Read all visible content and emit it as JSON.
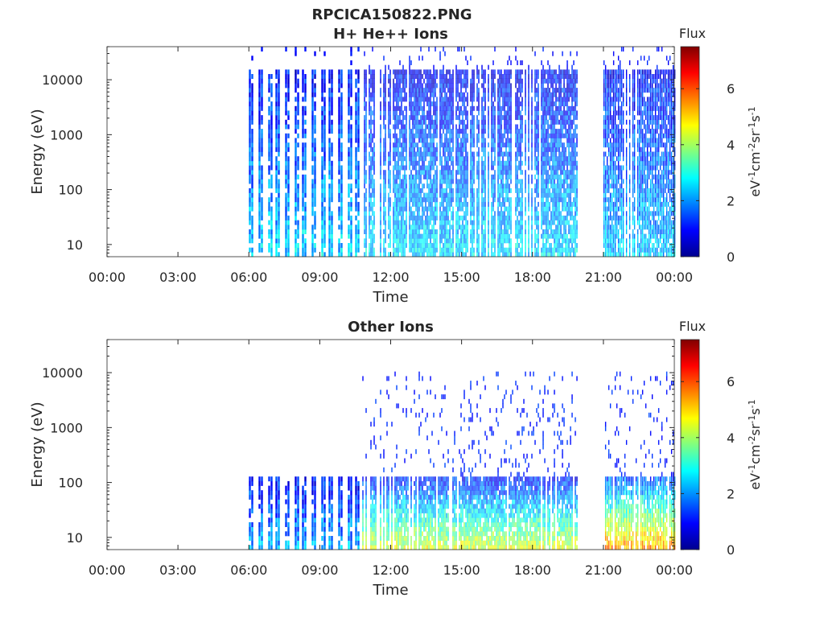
{
  "figure_title": "RPCICA150822.PNG",
  "colors": {
    "axis": "#262626",
    "colormap": [
      "#00008f",
      "#0000ff",
      "#0080ff",
      "#00ffff",
      "#80ff80",
      "#ffff00",
      "#ff8000",
      "#ff0000",
      "#800000"
    ]
  },
  "chart_data": [
    {
      "type": "heatmap",
      "title": "H+ He++ Ions",
      "xlabel": "Time",
      "ylabel": "Energy (eV)",
      "x_ticks": [
        "00:00",
        "03:00",
        "06:00",
        "09:00",
        "12:00",
        "15:00",
        "18:00",
        "21:00",
        "00:00"
      ],
      "x_range_hours": [
        0,
        24
      ],
      "y_scale": "log",
      "y_ticks": [
        "10",
        "100",
        "1000",
        "10000"
      ],
      "y_range_eV": [
        6,
        40000
      ],
      "colorbar": {
        "title": "Flux",
        "label": "eV-1cm-2sr-1s-1",
        "ticks": [
          "0",
          "2",
          "4",
          "6"
        ],
        "range": [
          0,
          7.5
        ]
      },
      "segments": [
        {
          "start_h": 6.0,
          "end_h": 10.8,
          "pattern": "striped",
          "emax_eV": 15000,
          "low_flux": 2.5,
          "high_flux": 1.0
        },
        {
          "start_h": 10.8,
          "end_h": 19.9,
          "pattern": "dense",
          "emax_eV": 15000,
          "low_flux": 2.6,
          "high_flux": 0.9
        },
        {
          "start_h": 21.0,
          "end_h": 24.0,
          "pattern": "dense",
          "emax_eV": 15000,
          "low_flux": 2.4,
          "high_flux": 1.0
        }
      ],
      "data_gaps_h": [
        [
          0,
          6.0
        ],
        [
          19.9,
          21.0
        ]
      ]
    },
    {
      "type": "heatmap",
      "title": "Other Ions",
      "xlabel": "Time",
      "ylabel": "Energy (eV)",
      "x_ticks": [
        "00:00",
        "03:00",
        "06:00",
        "09:00",
        "12:00",
        "15:00",
        "18:00",
        "21:00",
        "00:00"
      ],
      "x_range_hours": [
        0,
        24
      ],
      "y_scale": "log",
      "y_ticks": [
        "10",
        "100",
        "1000",
        "10000"
      ],
      "y_range_eV": [
        6,
        40000
      ],
      "colorbar": {
        "title": "Flux",
        "label": "eV-1cm-2sr-1s-1",
        "ticks": [
          "0",
          "2",
          "4",
          "6"
        ],
        "range": [
          0,
          7.5
        ]
      },
      "segments": [
        {
          "start_h": 6.0,
          "end_h": 10.8,
          "pattern": "striped",
          "emax_eV": 130,
          "low_flux": 2.2,
          "high_flux": 1.0
        },
        {
          "start_h": 10.8,
          "end_h": 19.9,
          "pattern": "dense",
          "emax_eV": 130,
          "low_flux": 4.5,
          "high_flux": 1.0,
          "sparse_to_eV": 11000
        },
        {
          "start_h": 21.0,
          "end_h": 24.0,
          "pattern": "dense",
          "emax_eV": 130,
          "low_flux": 5.5,
          "high_flux": 1.5,
          "sparse_to_eV": 11000
        }
      ],
      "data_gaps_h": [
        [
          0,
          6.0
        ],
        [
          19.9,
          21.0
        ]
      ]
    }
  ]
}
